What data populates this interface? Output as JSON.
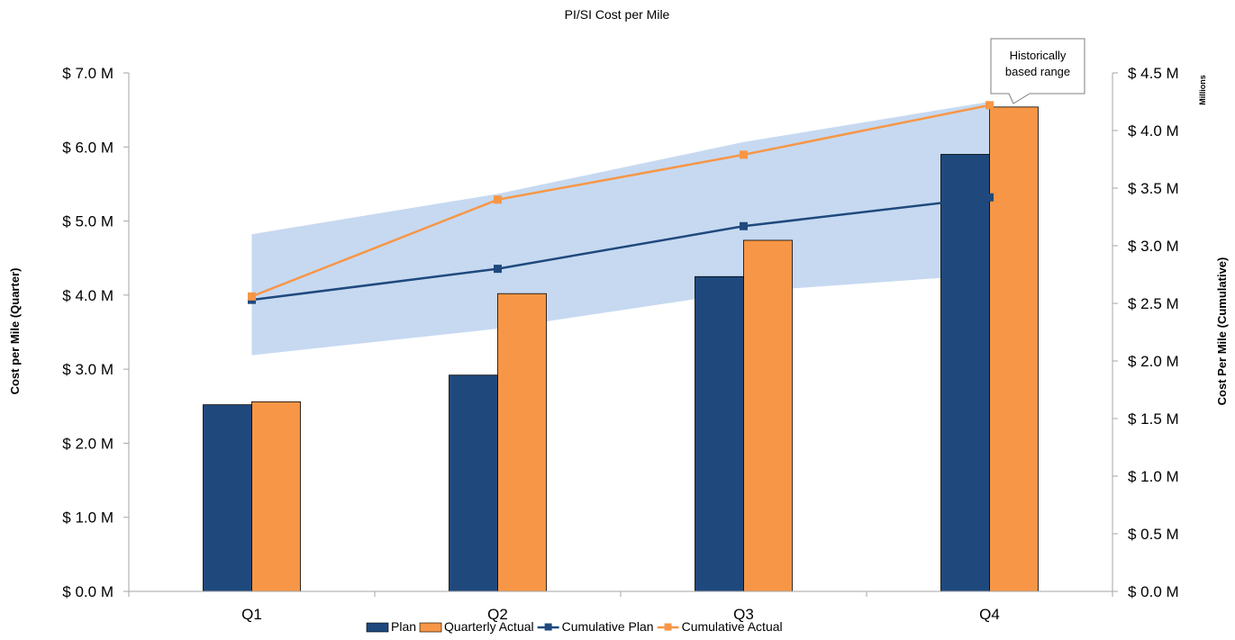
{
  "chart_data": {
    "type": "bar",
    "title": "PI/SI Cost per Mile",
    "categories": [
      "Q1",
      "Q2",
      "Q3",
      "Q4"
    ],
    "y_left": {
      "label": "Cost per Mile (Quarter)",
      "range": [
        0,
        7
      ],
      "ticks": [
        0,
        1,
        2,
        3,
        4,
        5,
        6,
        7
      ],
      "tick_labels": [
        "$ 0.0 M",
        "$ 1.0 M",
        "$ 2.0 M",
        "$ 3.0 M",
        "$ 4.0 M",
        "$ 5.0 M",
        "$ 6.0 M",
        "$ 7.0 M"
      ]
    },
    "y_right": {
      "label": "Cost Per Mile (Cumulative)",
      "unit_label": "Millions",
      "range": [
        0,
        4.5
      ],
      "ticks": [
        0,
        0.5,
        1,
        1.5,
        2,
        2.5,
        3,
        3.5,
        4,
        4.5
      ],
      "tick_labels": [
        "$ 0.0 M",
        "$ 0.5 M",
        "$ 1.0 M",
        "$ 1.5 M",
        "$ 2.0 M",
        "$ 2.5 M",
        "$ 3.0 M",
        "$ 3.5 M",
        "$ 4.0 M",
        "$ 4.5 M"
      ]
    },
    "series": [
      {
        "name": "Plan",
        "kind": "bar",
        "axis": "left",
        "color": "#1F497D",
        "values": [
          2.52,
          2.92,
          4.25,
          5.9
        ]
      },
      {
        "name": "Quarterly Actual",
        "kind": "bar",
        "axis": "left",
        "color": "#F79646",
        "values": [
          2.56,
          4.02,
          4.74,
          6.54
        ]
      },
      {
        "name": "Cumulative Plan",
        "kind": "line",
        "axis": "right",
        "color": "#1F497D",
        "values": [
          2.53,
          2.8,
          3.17,
          3.42
        ]
      },
      {
        "name": "Cumulative Actual",
        "kind": "line",
        "axis": "right",
        "color": "#F79646",
        "values": [
          2.56,
          3.4,
          3.79,
          4.22
        ]
      }
    ],
    "range_band": {
      "axis": "right",
      "color": "#C6D9F1",
      "lower": [
        2.05,
        2.28,
        2.6,
        2.75
      ],
      "upper": [
        3.1,
        3.45,
        3.9,
        4.25
      ]
    },
    "annotation": {
      "text_line1": "Historically",
      "text_line2": "based range"
    },
    "legend_position": "bottom",
    "grid": false
  }
}
